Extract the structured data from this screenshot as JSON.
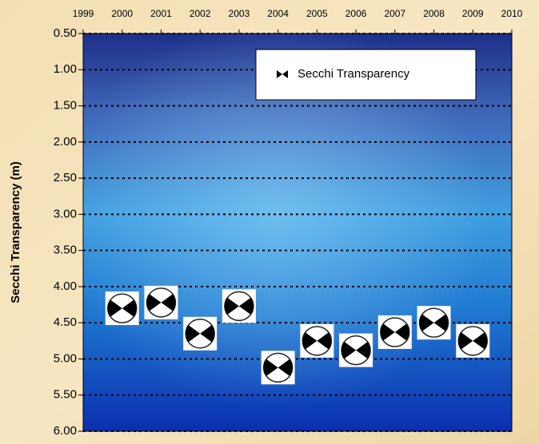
{
  "chart_data": {
    "type": "scatter",
    "y_label": "Secchi Transparency (m)",
    "legend_label": "Secchi Transparency",
    "x": [
      2000,
      2001,
      2002,
      2003,
      2004,
      2005,
      2006,
      2007,
      2008,
      2009
    ],
    "values": [
      4.3,
      4.22,
      4.65,
      4.27,
      5.12,
      4.75,
      4.88,
      4.63,
      4.5,
      4.75
    ],
    "xlim": [
      1999,
      2010
    ],
    "xticks": [
      1999,
      2000,
      2001,
      2002,
      2003,
      2004,
      2005,
      2006,
      2007,
      2008,
      2009,
      2010
    ],
    "ylim": [
      0.5,
      6
    ],
    "y_inverted": true,
    "yticks": [
      {
        "value": 0.5,
        "label": "0.50"
      },
      {
        "value": 1,
        "label": "1.00"
      },
      {
        "value": 1.5,
        "label": "1.50"
      },
      {
        "value": 2,
        "label": "2.00"
      },
      {
        "value": 2.5,
        "label": "2.50"
      },
      {
        "value": 3,
        "label": "3.00"
      },
      {
        "value": 3.5,
        "label": "3.50"
      },
      {
        "value": 4,
        "label": "4.00"
      },
      {
        "value": 4.5,
        "label": "4.50"
      },
      {
        "value": 5,
        "label": "5.00"
      },
      {
        "value": 5.5,
        "label": "5.50"
      },
      {
        "value": 6,
        "label": "6.00"
      }
    ],
    "grid": true,
    "legend": "upper right"
  }
}
